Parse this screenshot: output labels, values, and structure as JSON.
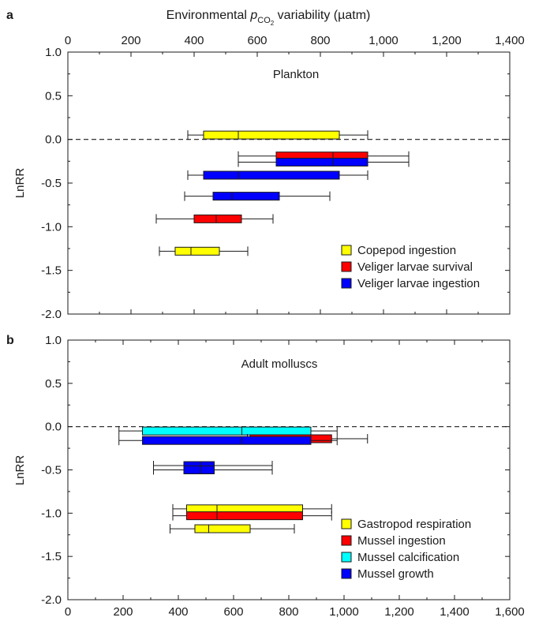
{
  "top_axis_title": {
    "prefix": "Environmental ",
    "italic": "p",
    "sub": "CO",
    "sub2": "2",
    "suffix": " variability (µatm)"
  },
  "chart_data": [
    {
      "type": "boxplot",
      "panel_label": "a",
      "title": "Plankton",
      "ylabel": "LnRR",
      "ylim": [
        -2.0,
        1.0
      ],
      "yticks": [
        "1.0",
        "0.5",
        "0.0",
        "-0.5",
        "-1.0",
        "-1.5",
        "-2.0"
      ],
      "xlim": [
        0,
        1400
      ],
      "xticks": [
        "0",
        "200",
        "400",
        "600",
        "800",
        "1,000",
        "1,200",
        "1,400"
      ],
      "x_axis_position": "top",
      "reference_line_y": 0.0,
      "legend": [
        {
          "label": "Copepod ingestion",
          "color": "#ffff00"
        },
        {
          "label": "Veliger larvae survival",
          "color": "#ff0000"
        },
        {
          "label": "Veliger larvae ingestion",
          "color": "#0000ff"
        }
      ],
      "boxes": [
        {
          "series": "Copepod ingestion",
          "y": 0.05,
          "whisker_low": 380,
          "q1": 430,
          "median": 540,
          "q3": 860,
          "whisker_high": 950,
          "color": "#ffff00"
        },
        {
          "series": "Veliger larvae survival",
          "y": -0.19,
          "whisker_low": 540,
          "q1": 660,
          "median": 840,
          "q3": 950,
          "whisker_high": 1080,
          "color": "#ff0000"
        },
        {
          "series": "Veliger larvae ingestion",
          "y": -0.26,
          "whisker_low": 540,
          "q1": 660,
          "median": 840,
          "q3": 950,
          "whisker_high": 1080,
          "color": "#0000ff"
        },
        {
          "series": "Veliger larvae ingestion",
          "y": -0.41,
          "whisker_low": 380,
          "q1": 430,
          "median": 540,
          "q3": 860,
          "whisker_high": 950,
          "color": "#0000ff"
        },
        {
          "series": "Veliger larvae ingestion",
          "y": -0.65,
          "whisker_low": 370,
          "q1": 460,
          "median": 520,
          "q3": 670,
          "whisker_high": 830,
          "color": "#0000ff"
        },
        {
          "series": "Veliger larvae survival",
          "y": -0.91,
          "whisker_low": 280,
          "q1": 400,
          "median": 470,
          "q3": 550,
          "whisker_high": 650,
          "color": "#ff0000"
        },
        {
          "series": "Copepod ingestion",
          "y": -1.28,
          "whisker_low": 290,
          "q1": 340,
          "median": 390,
          "q3": 480,
          "whisker_high": 570,
          "color": "#ffff00"
        }
      ]
    },
    {
      "type": "boxplot",
      "panel_label": "b",
      "title": "Adult molluscs",
      "ylabel": "LnRR",
      "ylim": [
        -2.0,
        1.0
      ],
      "yticks": [
        "1.0",
        "0.5",
        "0.0",
        "-0.5",
        "-1.0",
        "-1.5",
        "-2.0"
      ],
      "xlim": [
        0,
        1600
      ],
      "xticks": [
        "0",
        "200",
        "400",
        "600",
        "800",
        "1,000",
        "1,200",
        "1,400",
        "1,600"
      ],
      "x_axis_position": "bottom",
      "reference_line_y": 0.0,
      "legend": [
        {
          "label": "Gastropod respiration",
          "color": "#ffff00"
        },
        {
          "label": "Mussel ingestion",
          "color": "#ff0000"
        },
        {
          "label": "Mussel calcification",
          "color": "#00ffff"
        },
        {
          "label": "Mussel growth",
          "color": "#0000ff"
        }
      ],
      "boxes": [
        {
          "series": "Mussel calcification",
          "y": -0.05,
          "whisker_low": 185,
          "q1": 270,
          "median": 630,
          "q3": 880,
          "whisker_high": 975,
          "color": "#00ffff"
        },
        {
          "series": "Mussel ingestion",
          "y": -0.14,
          "whisker_low": 650,
          "q1": 660,
          "median": 880,
          "q3": 955,
          "whisker_high": 1085,
          "color": "#ff0000"
        },
        {
          "series": "Mussel growth",
          "y": -0.16,
          "whisker_low": 185,
          "q1": 270,
          "median": 630,
          "q3": 880,
          "whisker_high": 975,
          "color": "#0000ff"
        },
        {
          "series": "Mussel growth",
          "y": -0.45,
          "whisker_low": 310,
          "q1": 420,
          "median": 480,
          "q3": 530,
          "whisker_high": 740,
          "color": "#0000ff"
        },
        {
          "series": "Mussel growth",
          "y": -0.5,
          "whisker_low": 310,
          "q1": 420,
          "median": 480,
          "q3": 530,
          "whisker_high": 740,
          "color": "#0000ff"
        },
        {
          "series": "Gastropod respiration",
          "y": -0.95,
          "whisker_low": 380,
          "q1": 430,
          "median": 540,
          "q3": 850,
          "whisker_high": 955,
          "color": "#ffff00"
        },
        {
          "series": "Mussel ingestion",
          "y": -1.03,
          "whisker_low": 380,
          "q1": 430,
          "median": 540,
          "q3": 850,
          "whisker_high": 955,
          "color": "#ff0000"
        },
        {
          "series": "Gastropod respiration",
          "y": -1.18,
          "whisker_low": 370,
          "q1": 460,
          "median": 510,
          "q3": 660,
          "whisker_high": 820,
          "color": "#ffff00"
        }
      ]
    }
  ]
}
